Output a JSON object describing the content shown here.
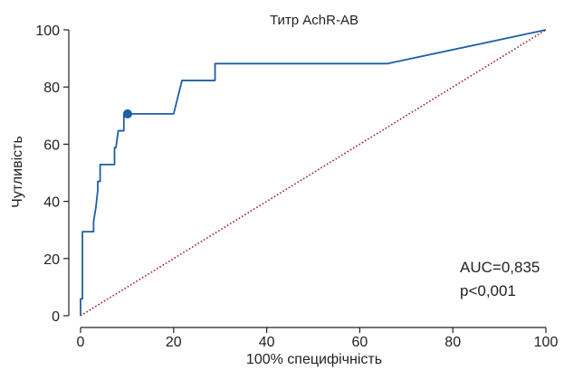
{
  "chart_data": {
    "type": "line",
    "title": "Титр AchR-AB",
    "xlabel": "100% специфічність",
    "ylabel": "Чутливість",
    "xlim": [
      0,
      100
    ],
    "ylim": [
      0,
      100
    ],
    "xticks": [
      "0",
      "20",
      "40",
      "60",
      "80",
      "100"
    ],
    "yticks": [
      "0",
      "20",
      "40",
      "60",
      "80",
      "100"
    ],
    "grid": false,
    "legend": "none",
    "series": [
      {
        "color": "#1f5fa3",
        "x": [
          0,
          0,
          0.4,
          0.4,
          2.8,
          2.8,
          3.3,
          3.5,
          3.7,
          3.7,
          4.2,
          4.2,
          6.2,
          7.3,
          7.3,
          7.6,
          8.1,
          8.1,
          9.3,
          9.3,
          10.1,
          10.1,
          20,
          21.8,
          21.8,
          28.9,
          28.9,
          66,
          100
        ],
        "y": [
          0,
          5.9,
          5.9,
          29.4,
          29.4,
          33,
          38,
          41,
          44,
          47,
          47,
          52.9,
          52.9,
          52.9,
          58.8,
          58.8,
          64.7,
          64.7,
          64.7,
          70.6,
          70.6,
          70.6,
          70.6,
          82.3,
          82.3,
          82.3,
          88.2,
          88.2,
          100
        ]
      },
      {
        "color": "#a0203c",
        "style": "dotted",
        "x": [
          0,
          100
        ],
        "y": [
          0,
          100
        ]
      }
    ],
    "marker": {
      "x": 10.1,
      "y": 70.6,
      "color": "#1f5fa3"
    },
    "annotations": [
      "AUC=0,835",
      "p<0,001"
    ]
  }
}
